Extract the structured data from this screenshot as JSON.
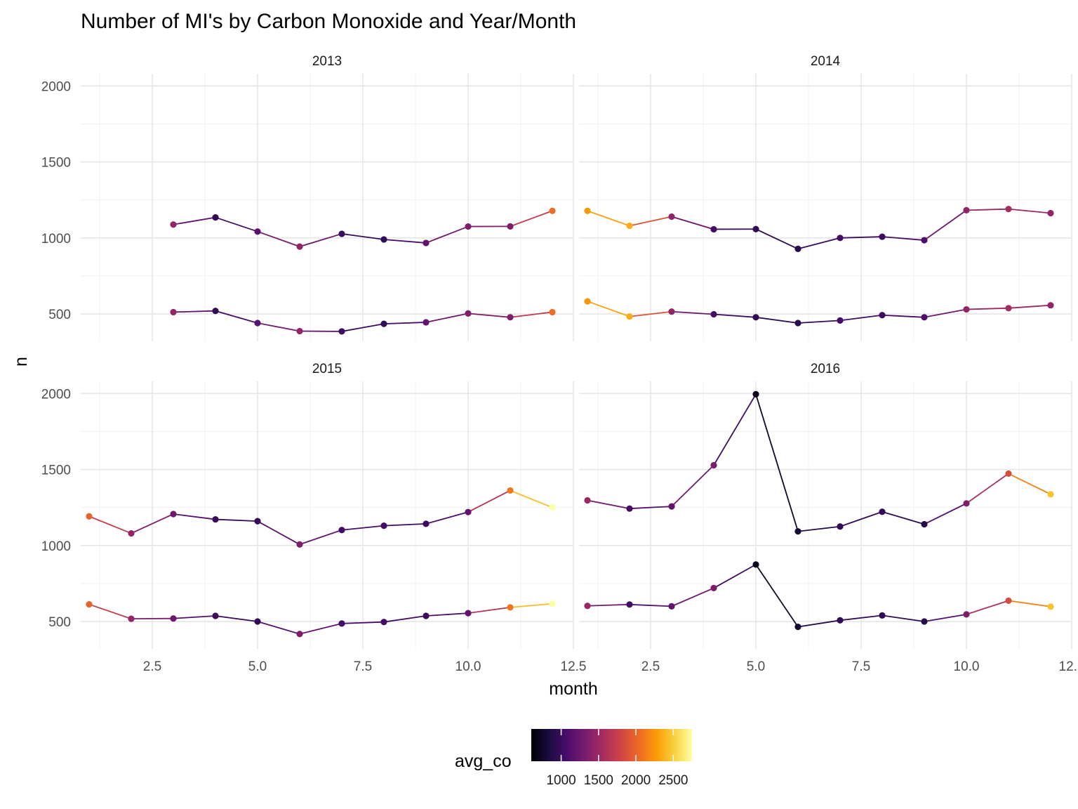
{
  "chart_data": {
    "type": "line",
    "title": "Number of MI's by Carbon Monoxide and Year/Month",
    "xlabel": "month",
    "ylabel": "n",
    "xlim": [
      0.8,
      12.5
    ],
    "ylim": [
      320,
      2080
    ],
    "x_ticks": [
      2.5,
      5.0,
      7.5,
      10.0,
      12.5
    ],
    "x_tick_labels": [
      "2.5",
      "5.0",
      "7.5",
      "10.0",
      "12.5"
    ],
    "y_ticks": [
      500,
      1000,
      1500,
      2000
    ],
    "y_tick_labels": [
      "500",
      "1000",
      "1500",
      "2000"
    ],
    "grid": true,
    "legend": {
      "title": "avg_co",
      "position": "bottom",
      "type": "colorbar",
      "palette": "inferno",
      "colors": [
        "#000004",
        "#1b0c41",
        "#4a0c6b",
        "#781c6d",
        "#a52c60",
        "#cf4446",
        "#ed6925",
        "#fb9b06",
        "#f7d13d",
        "#fcffa4"
      ],
      "range": [
        600,
        2750
      ],
      "tick_values": [
        1000,
        1500,
        2000,
        2500
      ],
      "tick_labels": [
        "1000",
        "1500",
        "2000",
        "2500"
      ]
    },
    "panels": [
      {
        "label": "2013",
        "series": [
          {
            "x": [
              3,
              4,
              5,
              6,
              7,
              8,
              9,
              10,
              11,
              12
            ],
            "y": [
              1088,
              1135,
              1042,
              943,
              1027,
              990,
              967,
              1075,
              1076,
              1178
            ],
            "avg_co": [
              1450,
              950,
              1150,
              1450,
              1000,
              950,
              1200,
              1350,
              1350,
              2050
            ]
          },
          {
            "x": [
              3,
              4,
              5,
              6,
              7,
              8,
              9,
              10,
              11,
              12
            ],
            "y": [
              512,
              520,
              440,
              387,
              385,
              435,
              445,
              503,
              478,
              512
            ],
            "avg_co": [
              1450,
              950,
              1150,
              1450,
              1000,
              950,
              1200,
              1350,
              1350,
              2050
            ]
          }
        ]
      },
      {
        "label": "2014",
        "series": [
          {
            "x": [
              1,
              2,
              3,
              4,
              5,
              6,
              7,
              8,
              9,
              10,
              11,
              12
            ],
            "y": [
              1178,
              1080,
              1140,
              1057,
              1058,
              928,
              1000,
              1008,
              985,
              1182,
              1190,
              1163
            ],
            "avg_co": [
              2250,
              2350,
              1450,
              1050,
              950,
              900,
              1050,
              1000,
              1100,
              1450,
              1550,
              1450
            ]
          },
          {
            "x": [
              1,
              2,
              3,
              4,
              5,
              6,
              7,
              8,
              9,
              10,
              11,
              12
            ],
            "y": [
              583,
              483,
              515,
              498,
              478,
              440,
              457,
              492,
              478,
              530,
              538,
              557
            ],
            "avg_co": [
              2250,
              2350,
              1450,
              1050,
              950,
              900,
              1050,
              1000,
              1100,
              1450,
              1550,
              1450
            ]
          }
        ]
      },
      {
        "label": "2015",
        "series": [
          {
            "x": [
              1,
              2,
              3,
              4,
              5,
              6,
              7,
              8,
              9,
              10,
              11,
              12
            ],
            "y": [
              1192,
              1080,
              1207,
              1172,
              1160,
              1007,
              1102,
              1130,
              1143,
              1220,
              1362,
              1250
            ],
            "avg_co": [
              2000,
              1450,
              1250,
              1000,
              950,
              1350,
              1050,
              1050,
              1000,
              1200,
              2100,
              2750
            ]
          },
          {
            "x": [
              1,
              2,
              3,
              4,
              5,
              6,
              7,
              8,
              9,
              10,
              11,
              12
            ],
            "y": [
              613,
              518,
              520,
              537,
              500,
              418,
              487,
              497,
              537,
              555,
              593,
              617
            ],
            "avg_co": [
              2000,
              1450,
              1250,
              1000,
              950,
              1350,
              1050,
              1050,
              1000,
              1200,
              2100,
              2750
            ]
          }
        ]
      },
      {
        "label": "2016",
        "series": [
          {
            "x": [
              1,
              2,
              3,
              4,
              5,
              6,
              7,
              8,
              9,
              10,
              11,
              12
            ],
            "y": [
              1297,
              1243,
              1257,
              1528,
              1995,
              1093,
              1125,
              1222,
              1140,
              1277,
              1473,
              1337
            ],
            "avg_co": [
              1500,
              1050,
              1200,
              1350,
              700,
              800,
              950,
              950,
              900,
              1350,
              1850,
              2450
            ]
          },
          {
            "x": [
              1,
              2,
              3,
              4,
              5,
              6,
              7,
              8,
              9,
              10,
              11,
              12
            ],
            "y": [
              603,
              612,
              600,
              720,
              875,
              465,
              508,
              540,
              500,
              547,
              637,
              598
            ],
            "avg_co": [
              1500,
              1050,
              1200,
              1350,
              700,
              800,
              950,
              950,
              900,
              1350,
              1850,
              2450
            ]
          }
        ]
      }
    ]
  }
}
